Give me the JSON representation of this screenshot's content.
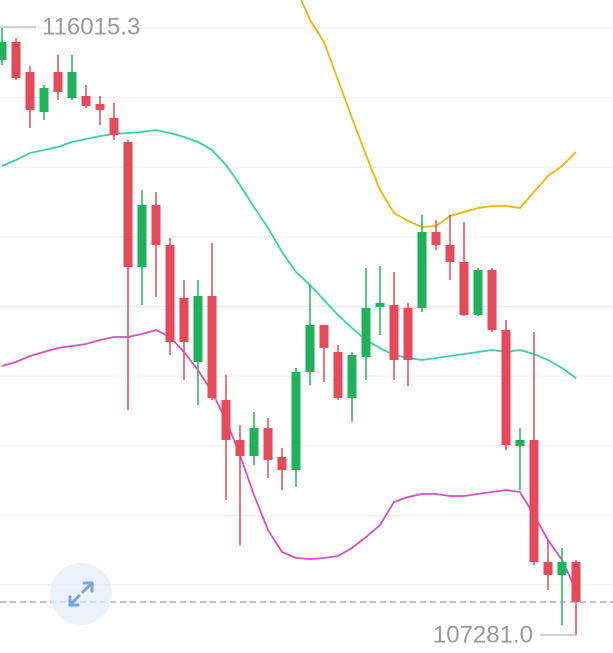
{
  "chart_data": {
    "type": "candlestick",
    "ylim": [
      107022,
      116403
    ],
    "yticks": [
      108000,
      109000,
      110000,
      111000,
      112000,
      113000,
      114000,
      115000,
      116000
    ],
    "grid": true,
    "up_color": "#20b25a",
    "down_color": "#e54a5a",
    "open": [
      115541,
      115800,
      115369,
      114794,
      115369,
      114995,
      115024,
      114909,
      114708,
      114363,
      112567,
      113458,
      112883,
      112122,
      111202,
      112151,
      110657,
      110082,
      109852,
      110254,
      109838,
      109651,
      111059,
      111734,
      111346,
      110685,
      111274,
      111993,
      112021,
      111978,
      111978,
      113070,
      112883,
      112639,
      111878,
      112524,
      111662,
      109996,
      110082,
      108329,
      108142,
      108329
    ],
    "high": [
      116001,
      115857,
      115455,
      115182,
      115613,
      115613,
      115182,
      115024,
      114923,
      114392,
      113673,
      113645,
      112984,
      112381,
      112381,
      112912,
      111016,
      110297,
      110484,
      110398,
      109967,
      111116,
      112309,
      111734,
      111447,
      111346,
      112553,
      112582,
      112495,
      112050,
      113314,
      113242,
      113314,
      113214,
      112553,
      112553,
      111806,
      110254,
      111633,
      108645,
      108530,
      108358
    ],
    "low": [
      115469,
      115254,
      114564,
      114679,
      114966,
      114966,
      114851,
      114607,
      114392,
      110513,
      112021,
      112136,
      111303,
      110944,
      110585,
      110657,
      109220,
      108573,
      109723,
      109536,
      109364,
      109407,
      110872,
      110915,
      110657,
      110341,
      110944,
      111590,
      110944,
      110858,
      111921,
      112811,
      112381,
      111863,
      111863,
      111633,
      109938,
      109364,
      108286,
      107927,
      107424,
      107281
    ],
    "close": [
      115800,
      115282,
      114823,
      115139,
      115081,
      115369,
      114880,
      114823,
      114464,
      112567,
      113458,
      112883,
      111490,
      111490,
      112151,
      110685,
      110082,
      109852,
      110254,
      109795,
      109651,
      111059,
      111734,
      111404,
      110685,
      111303,
      111978,
      112050,
      111231,
      111231,
      113070,
      112883,
      112639,
      111878,
      112524,
      111662,
      110010,
      110082,
      108329,
      108142,
      108329,
      107755
    ],
    "overlays": [
      {
        "color": "#f2b500",
        "values": [
          null,
          null,
          null,
          null,
          null,
          null,
          null,
          null,
          null,
          null,
          null,
          null,
          null,
          null,
          null,
          null,
          null,
          null,
          null,
          null,
          null,
          116575,
          116116,
          115800,
          115254,
          114708,
          114176,
          113673,
          113343,
          113228,
          113142,
          113156,
          113300,
          113357,
          113415,
          113444,
          113444,
          113415,
          113645,
          113875,
          114018,
          114219
        ]
      },
      {
        "color": "#36d2a8",
        "values": [
          114018,
          114104,
          114205,
          114248,
          114291,
          114363,
          114406,
          114449,
          114478,
          114492,
          114507,
          114535,
          114492,
          114435,
          114363,
          114248,
          114033,
          113745,
          113429,
          113128,
          112783,
          112495,
          112309,
          112093,
          111878,
          111691,
          111519,
          111404,
          111303,
          111260,
          111231,
          111260,
          111289,
          111317,
          111346,
          111375,
          111346,
          111375,
          111317,
          111231,
          111116,
          110973
        ]
      },
      {
        "color": "#d94fc6",
        "values": [
          111145,
          111202,
          111289,
          111346,
          111404,
          111432,
          111461,
          111519,
          111562,
          111562,
          111605,
          111662,
          111562,
          111346,
          111088,
          110771,
          110369,
          109866,
          109292,
          108789,
          108473,
          108387,
          108372,
          108387,
          108415,
          108530,
          108688,
          108861,
          109191,
          109263,
          109306,
          109306,
          109277,
          109277,
          109306,
          109335,
          109364,
          109335,
          109004,
          108645,
          108358,
          107927
        ]
      }
    ],
    "last_price": 107755,
    "high_marker": 116015.3,
    "low_marker": {
      "value": 107281,
      "label": "107281.0"
    }
  }
}
